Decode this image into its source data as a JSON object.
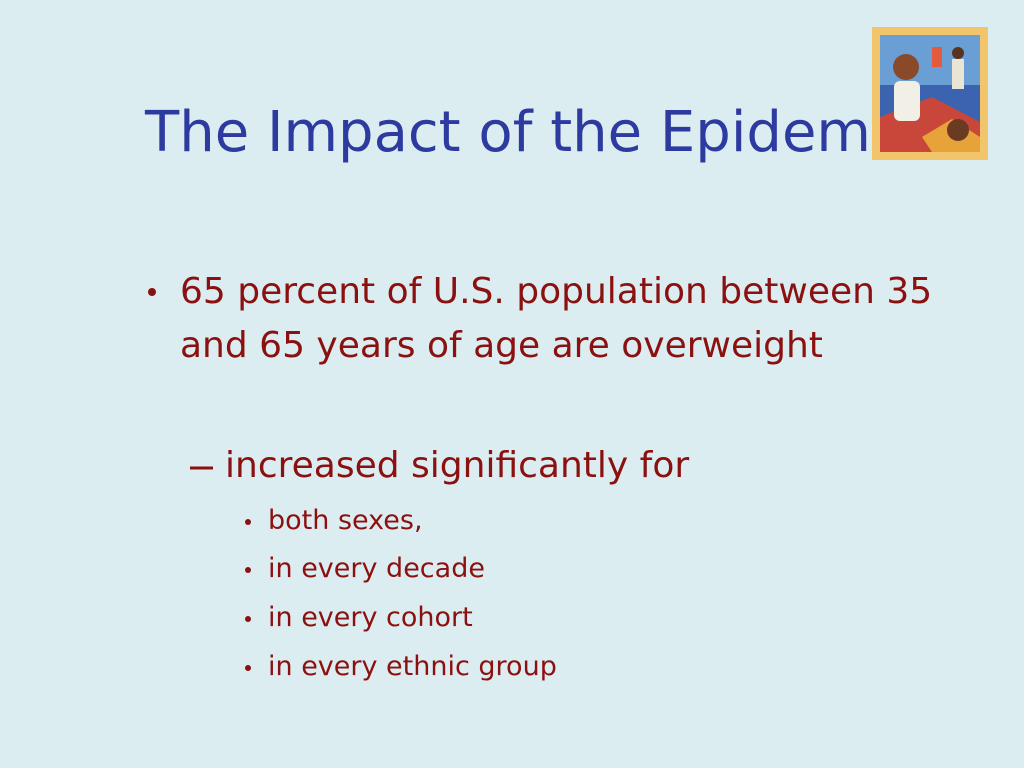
{
  "title": "The Impact of the Epidemic",
  "bullets": [
    {
      "text": "65 percent of U.S. population between 35 and 65 years of age are overweight",
      "subitems": [
        {
          "text": "increased significantly for",
          "subitems": [
            "both sexes,",
            "in every decade",
            "in every cohort",
            "in every ethnic group"
          ]
        }
      ]
    }
  ]
}
